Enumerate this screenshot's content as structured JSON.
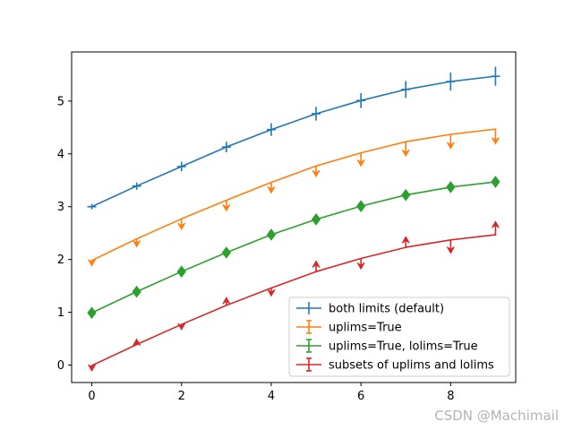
{
  "chart_data": {
    "type": "line",
    "title": "",
    "xlabel": "",
    "ylabel": "",
    "xlim": [
      -0.45,
      9.45
    ],
    "ylim": [
      -0.33,
      5.93
    ],
    "xticks": [
      0,
      2,
      4,
      6,
      8
    ],
    "yticks": [
      0,
      1,
      2,
      3,
      4,
      5
    ],
    "x": [
      0,
      1,
      2,
      3,
      4,
      5,
      6,
      7,
      8,
      9
    ],
    "legend_position": "lower-right",
    "series": [
      {
        "name": "both limits (default)",
        "color": "#1f77b4",
        "marker": "none",
        "mode": "both",
        "y": [
          3.0,
          3.39,
          3.76,
          4.13,
          4.46,
          4.76,
          5.01,
          5.22,
          5.37,
          5.47
        ],
        "yerr": [
          0.05,
          0.07,
          0.09,
          0.1,
          0.12,
          0.13,
          0.14,
          0.16,
          0.17,
          0.18
        ],
        "limits": []
      },
      {
        "name": "uplims=True",
        "color": "#ff7f0e",
        "marker": "none",
        "mode": "uplims",
        "y": [
          1.98,
          2.39,
          2.77,
          3.12,
          3.46,
          3.77,
          4.02,
          4.23,
          4.37,
          4.47
        ],
        "yerr": [
          0.1,
          0.15,
          0.2,
          0.2,
          0.2,
          0.2,
          0.25,
          0.27,
          0.27,
          0.28
        ],
        "limits": []
      },
      {
        "name": "uplims=True, lolims=True",
        "color": "#2ca02c",
        "marker": "diamond",
        "mode": "both-limits",
        "y": [
          0.99,
          1.39,
          1.77,
          2.13,
          2.47,
          2.76,
          3.01,
          3.22,
          3.37,
          3.47
        ],
        "yerr": [
          0.03,
          0.03,
          0.03,
          0.03,
          0.03,
          0.03,
          0.03,
          0.03,
          0.03,
          0.03
        ],
        "limits": []
      },
      {
        "name": "subsets of uplims and lolims",
        "color": "#d62728",
        "marker": "none",
        "mode": "subsets",
        "y": [
          -0.01,
          0.39,
          0.77,
          1.13,
          1.46,
          1.77,
          2.02,
          2.23,
          2.37,
          2.47
        ],
        "yerr": [
          0.1,
          0.1,
          0.1,
          0.15,
          0.15,
          0.2,
          0.2,
          0.2,
          0.25,
          0.25
        ],
        "limits": [
          "up",
          "lo",
          "up",
          "lo",
          "up",
          "lo",
          "up",
          "lo",
          "up",
          "lo"
        ]
      }
    ]
  },
  "watermark": "CSDN @Machimail"
}
